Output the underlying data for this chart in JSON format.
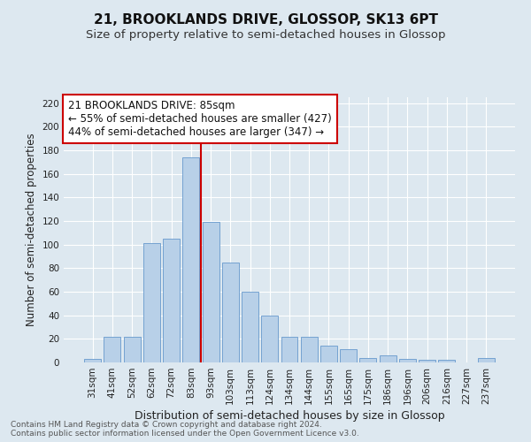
{
  "title": "21, BROOKLANDS DRIVE, GLOSSOP, SK13 6PT",
  "subtitle": "Size of property relative to semi-detached houses in Glossop",
  "xlabel": "Distribution of semi-detached houses by size in Glossop",
  "ylabel": "Number of semi-detached properties",
  "categories": [
    "31sqm",
    "41sqm",
    "52sqm",
    "62sqm",
    "72sqm",
    "83sqm",
    "93sqm",
    "103sqm",
    "113sqm",
    "124sqm",
    "134sqm",
    "144sqm",
    "155sqm",
    "165sqm",
    "175sqm",
    "186sqm",
    "196sqm",
    "206sqm",
    "216sqm",
    "227sqm",
    "237sqm"
  ],
  "values": [
    3,
    22,
    22,
    101,
    105,
    174,
    119,
    85,
    60,
    40,
    22,
    22,
    14,
    11,
    4,
    6,
    3,
    2,
    2,
    0,
    4
  ],
  "bar_color": "#b8d0e8",
  "bar_edge_color": "#6699cc",
  "highlight_index": 5,
  "annotation_line1": "21 BROOKLANDS DRIVE: 85sqm",
  "annotation_line2": "← 55% of semi-detached houses are smaller (427)",
  "annotation_line3": "44% of semi-detached houses are larger (347) →",
  "annotation_box_color": "#ffffff",
  "annotation_box_edge_color": "#cc0000",
  "vline_color": "#cc0000",
  "background_color": "#dde8f0",
  "plot_background_color": "#dde8f0",
  "footer_text": "Contains HM Land Registry data © Crown copyright and database right 2024.\nContains public sector information licensed under the Open Government Licence v3.0.",
  "ylim": [
    0,
    225
  ],
  "yticks": [
    0,
    20,
    40,
    60,
    80,
    100,
    120,
    140,
    160,
    180,
    200,
    220
  ],
  "title_fontsize": 11,
  "subtitle_fontsize": 9.5,
  "xlabel_fontsize": 9,
  "ylabel_fontsize": 8.5,
  "tick_fontsize": 7.5,
  "annotation_fontsize": 8.5,
  "footer_fontsize": 6.5
}
